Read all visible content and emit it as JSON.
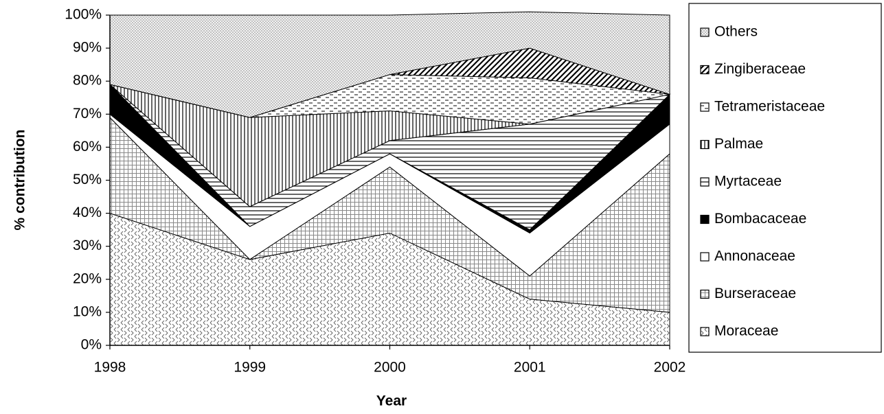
{
  "chart_data": {
    "type": "stacked-area",
    "x_label": "Year",
    "y_label": "% contribution",
    "x": [
      1998,
      1999,
      2000,
      2001,
      2002
    ],
    "xlim": [
      1998,
      2002
    ],
    "xticks": [
      1998,
      1999,
      2000,
      2001,
      2002
    ],
    "ylim": [
      0,
      100
    ],
    "yticks": [
      {
        "value": 0,
        "label": "0%"
      },
      {
        "value": 10,
        "label": "10%"
      },
      {
        "value": 20,
        "label": "20%"
      },
      {
        "value": 30,
        "label": "30%"
      },
      {
        "value": 40,
        "label": "40%"
      },
      {
        "value": 50,
        "label": "50%"
      },
      {
        "value": 60,
        "label": "60%"
      },
      {
        "value": 70,
        "label": "70%"
      },
      {
        "value": 80,
        "label": "80%"
      },
      {
        "value": 90,
        "label": "90%"
      },
      {
        "value": 100,
        "label": "100%"
      }
    ],
    "legend": "right",
    "series": [
      {
        "name": "Moraceae",
        "pattern": "chevrons",
        "values": [
          40,
          26,
          34,
          14,
          10
        ]
      },
      {
        "name": "Burseraceae",
        "pattern": "grid",
        "values": [
          29,
          0,
          20,
          7,
          48
        ]
      },
      {
        "name": "Annonaceae",
        "pattern": "white",
        "values": [
          1,
          10,
          4,
          13,
          9
        ]
      },
      {
        "name": "Bombacaceae",
        "pattern": "black",
        "values": [
          9,
          0,
          0,
          1,
          9
        ]
      },
      {
        "name": "Myrtaceae",
        "pattern": "hlines",
        "values": [
          0,
          6,
          4,
          32,
          0
        ]
      },
      {
        "name": "Palmae",
        "pattern": "vlines",
        "values": [
          0,
          27,
          9,
          0,
          0
        ]
      },
      {
        "name": "Tetrameristaceae",
        "pattern": "dashes",
        "values": [
          0,
          0,
          11,
          14,
          0
        ]
      },
      {
        "name": "Zingiberaceae",
        "pattern": "diagonal",
        "values": [
          0,
          0,
          0,
          9,
          0
        ]
      },
      {
        "name": "Others",
        "pattern": "dots",
        "values": [
          21,
          31,
          18,
          11,
          24
        ]
      }
    ]
  }
}
